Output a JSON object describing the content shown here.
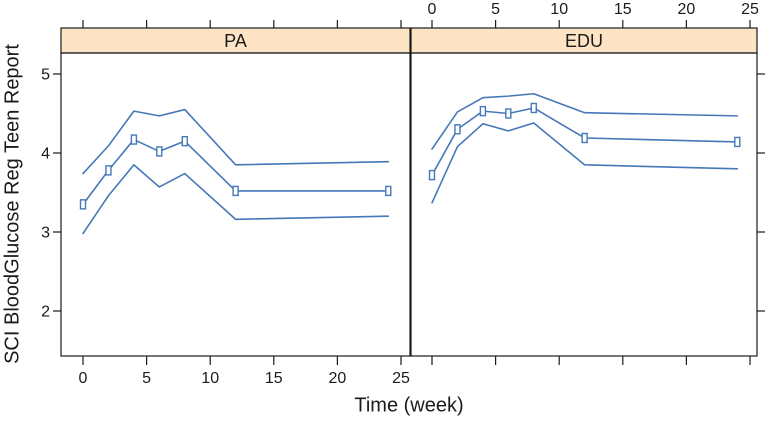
{
  "colors": {
    "line": "#4678b8",
    "strip": "#fde4c4",
    "frame": "#1b1b1b",
    "text": "#1b1b1b",
    "marker_fill": "#ffffff"
  },
  "chart_data": {
    "type": "line",
    "title": "",
    "xlabel": "Time (week)",
    "ylabel": "SCI BloodGlucose Reg Teen Report",
    "x_ticks": [
      0,
      5,
      10,
      15,
      20,
      25
    ],
    "y_ticks": [
      2,
      3,
      4,
      5
    ],
    "xlim": [
      -1.7,
      25.7
    ],
    "ylim": [
      1.43,
      5.27
    ],
    "grid": false,
    "legend": "none",
    "marker": "open-square",
    "weeks": [
      0,
      2,
      4,
      6,
      8,
      12,
      24
    ],
    "panels": [
      {
        "label": "PA",
        "series": {
          "upper": [
            3.74,
            4.09,
            4.53,
            4.47,
            4.55,
            3.85,
            3.89
          ],
          "mean": [
            3.35,
            3.78,
            4.17,
            4.02,
            4.15,
            3.52,
            3.52
          ],
          "lower": [
            2.98,
            3.46,
            3.85,
            3.57,
            3.74,
            3.16,
            3.2
          ]
        }
      },
      {
        "label": "EDU",
        "series": {
          "upper": [
            4.05,
            4.52,
            4.7,
            4.72,
            4.75,
            4.51,
            4.47
          ],
          "mean": [
            3.72,
            4.3,
            4.53,
            4.5,
            4.57,
            4.19,
            4.14
          ],
          "lower": [
            3.37,
            4.08,
            4.37,
            4.28,
            4.38,
            3.85,
            3.8
          ]
        }
      }
    ]
  }
}
